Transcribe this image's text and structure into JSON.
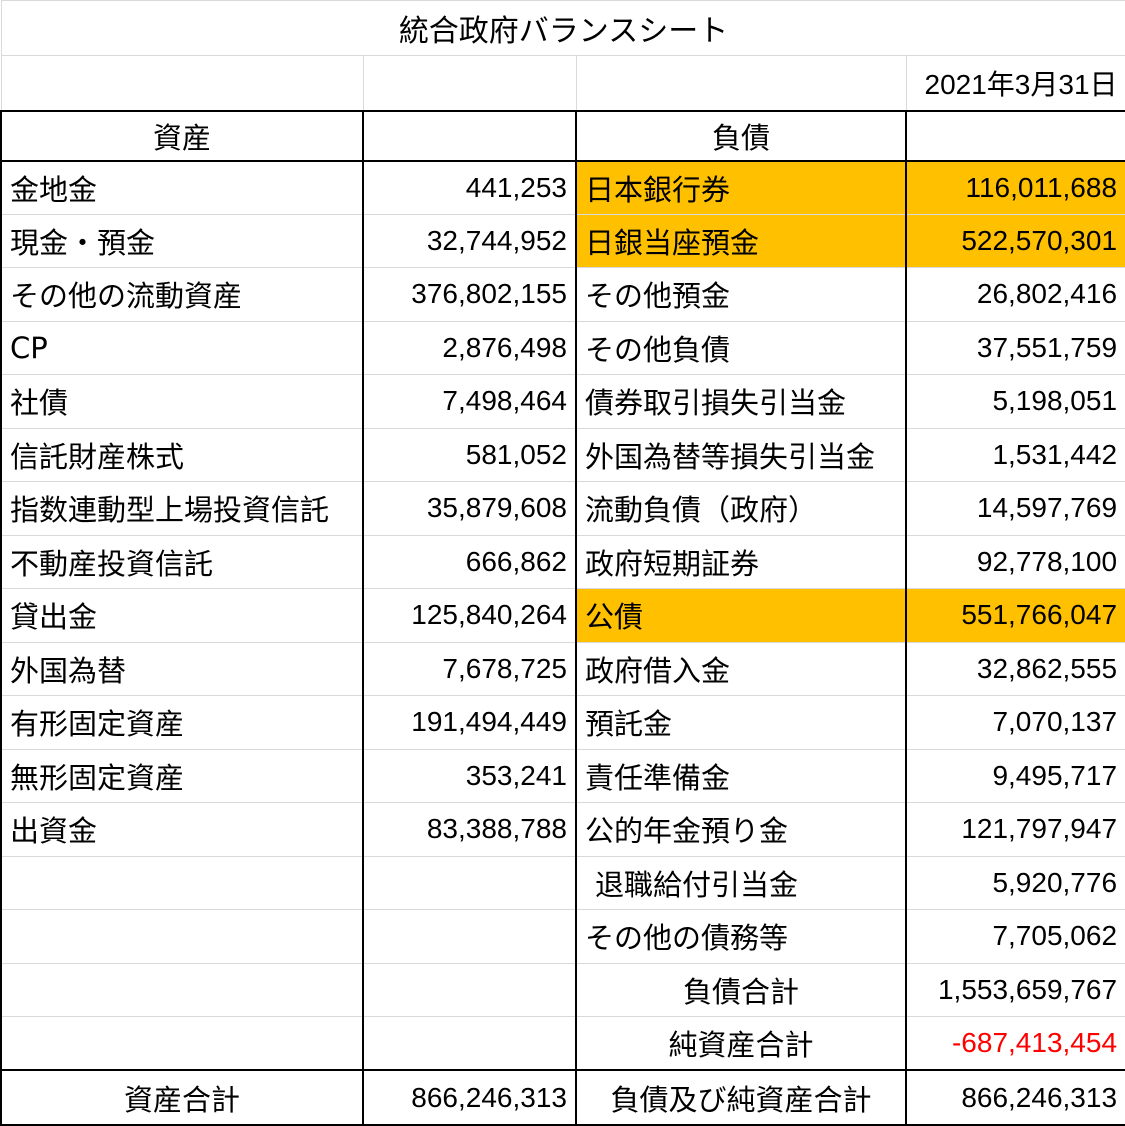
{
  "title": "統合政府バランスシート",
  "date": "2021年3月31日",
  "headers": {
    "assets": "資産",
    "liabilities": "負債"
  },
  "assets": [
    {
      "name": "金地金",
      "value": "441,253"
    },
    {
      "name": "現金・預金",
      "value": "32,744,952"
    },
    {
      "name": "その他の流動資産",
      "value": "376,802,155"
    },
    {
      "name": "CP",
      "value": "2,876,498"
    },
    {
      "name": "社債",
      "value": "7,498,464"
    },
    {
      "name": "信託財産株式",
      "value": "581,052"
    },
    {
      "name": "指数連動型上場投資信託",
      "value": "35,879,608"
    },
    {
      "name": "不動産投資信託",
      "value": "666,862"
    },
    {
      "name": "貸出金",
      "value": "125,840,264"
    },
    {
      "name": "外国為替",
      "value": "7,678,725"
    },
    {
      "name": "有形固定資産",
      "value": "191,494,449"
    },
    {
      "name": "無形固定資産",
      "value": "353,241"
    },
    {
      "name": "出資金",
      "value": "83,388,788"
    }
  ],
  "liabilities": [
    {
      "name": "日本銀行券",
      "value": "116,011,688"
    },
    {
      "name": "日銀当座預金",
      "value": "522,570,301"
    },
    {
      "name": "その他預金",
      "value": "26,802,416"
    },
    {
      "name": "その他負債",
      "value": "37,551,759"
    },
    {
      "name": "債券取引損失引当金",
      "value": "5,198,051"
    },
    {
      "name": "外国為替等損失引当金",
      "value": "1,531,442"
    },
    {
      "name": "流動負債（政府）",
      "value": "14,597,769"
    },
    {
      "name": "政府短期証券",
      "value": "92,778,100"
    },
    {
      "name": "公債",
      "value": "551,766,047"
    },
    {
      "name": "政府借入金",
      "value": "32,862,555"
    },
    {
      "name": "預託金",
      "value": "7,070,137"
    },
    {
      "name": "責任準備金",
      "value": "9,495,717"
    },
    {
      "name": "公的年金預り金",
      "value": "121,797,947"
    },
    {
      "name": "退職給付引当金",
      "value": "5,920,776"
    },
    {
      "name": "その他の債務等",
      "value": "7,705,062"
    },
    {
      "name": "負債合計",
      "value": "1,553,659,767"
    },
    {
      "name": "純資産合計",
      "value": "-687,413,454"
    }
  ],
  "totals": {
    "assets_label": "資産合計",
    "assets_value": "866,246,313",
    "liabilities_label": "負債及び純資産合計",
    "liabilities_value": "866,246,313"
  }
}
